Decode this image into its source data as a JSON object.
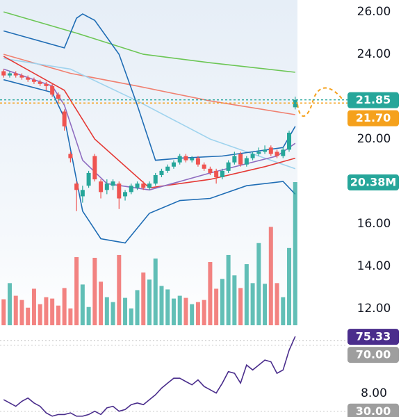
{
  "chart_data": {
    "type": "candlestick",
    "xlim": [
      -0.6,
      48.6
    ],
    "ylim": [
      6.89,
      26.56
    ],
    "yticks": [
      {
        "value": 26,
        "label": "26.00"
      },
      {
        "value": 24,
        "label": "24.00"
      },
      {
        "value": 20,
        "label": "20.00"
      },
      {
        "value": 16,
        "label": "16.00"
      },
      {
        "value": 14,
        "label": "14.00"
      },
      {
        "value": 12,
        "label": "12.00"
      },
      {
        "value": 8,
        "label": "8.00"
      }
    ],
    "up_color": "#26a69a",
    "down_color": "#ef5350",
    "open": [
      23.2,
      23.0,
      23.1,
      23.0,
      22.9,
      22.8,
      22.7,
      22.6,
      22.5,
      22.1,
      21.3,
      19.3,
      17.9,
      17.3,
      17.8,
      19.2,
      18.0,
      17.6,
      17.8,
      17.9,
      17.3,
      17.5,
      17.7,
      17.9,
      17.7,
      17.9,
      18.3,
      18.5,
      18.7,
      18.9,
      19.2,
      19.0,
      19.1,
      18.8,
      18.6,
      18.5,
      18.2,
      18.5,
      18.9,
      19.3,
      18.8,
      19.1,
      19.3,
      19.4,
      19.6,
      19.4,
      19.2,
      19.5,
      21.5
    ],
    "high": [
      23.3,
      23.2,
      23.2,
      23.1,
      23.0,
      22.9,
      22.8,
      22.7,
      22.6,
      22.2,
      21.4,
      19.4,
      18.0,
      17.8,
      18.5,
      19.3,
      18.1,
      18.1,
      18.1,
      18.0,
      17.6,
      17.9,
      18.0,
      18.0,
      18.0,
      18.4,
      18.6,
      18.8,
      19.0,
      19.3,
      19.3,
      19.2,
      19.2,
      18.9,
      18.7,
      18.6,
      18.6,
      19.0,
      19.4,
      19.4,
      19.2,
      19.4,
      19.6,
      19.7,
      19.7,
      19.5,
      19.6,
      20.4,
      22.0
    ],
    "low": [
      22.9,
      22.9,
      22.9,
      22.8,
      22.7,
      22.6,
      22.5,
      22.3,
      22.0,
      21.7,
      20.4,
      18.9,
      16.6,
      17.0,
      17.7,
      18.0,
      17.2,
      17.4,
      17.6,
      16.7,
      17.1,
      17.4,
      17.6,
      17.6,
      17.6,
      17.8,
      18.2,
      18.4,
      18.6,
      18.8,
      18.9,
      18.9,
      18.7,
      18.5,
      18.3,
      17.9,
      18.1,
      18.4,
      18.8,
      18.7,
      18.7,
      19.0,
      19.2,
      19.3,
      19.2,
      19.1,
      19.1,
      19.4,
      21.4
    ],
    "close": [
      23.0,
      23.1,
      23.0,
      22.9,
      22.8,
      22.7,
      22.6,
      22.5,
      22.1,
      21.9,
      20.6,
      19.1,
      17.6,
      17.6,
      18.4,
      18.1,
      17.5,
      17.9,
      18.0,
      17.2,
      17.5,
      17.8,
      17.9,
      17.7,
      17.9,
      18.3,
      18.5,
      18.7,
      18.9,
      19.2,
      19.0,
      19.1,
      18.8,
      18.6,
      18.4,
      18.2,
      18.5,
      18.9,
      19.2,
      18.8,
      19.1,
      19.3,
      19.4,
      19.5,
      19.3,
      19.2,
      19.5,
      20.3,
      21.85
    ],
    "lines": [
      {
        "color": "#6cc655",
        "x": [
          0,
          12,
          23,
          34,
          48
        ],
        "values": [
          26.0,
          25.0,
          24.0,
          23.6,
          23.15
        ]
      },
      {
        "color": "#f08070",
        "x": [
          0,
          11,
          22,
          34,
          48
        ],
        "values": [
          24.0,
          23.1,
          22.5,
          21.8,
          21.15
        ]
      },
      {
        "color": "#9fd3ee",
        "x": [
          0,
          11,
          22,
          34,
          40,
          48
        ],
        "values": [
          23.8,
          23.3,
          21.8,
          20.0,
          19.4,
          18.6
        ]
      },
      {
        "color": "#e53935",
        "x": [
          0,
          10,
          15,
          24,
          34,
          43,
          48
        ],
        "values": [
          23.9,
          22.3,
          20.0,
          17.7,
          18.1,
          18.7,
          19.1
        ]
      },
      {
        "color": "#8e6cc0",
        "x": [
          0,
          8,
          10,
          13,
          17,
          24,
          34,
          45,
          48
        ],
        "values": [
          23.3,
          22.5,
          21.6,
          19.0,
          17.9,
          17.6,
          18.4,
          19.2,
          19.8
        ]
      },
      {
        "color": "#1f6db5",
        "x": [
          0,
          10,
          12,
          13,
          15,
          19,
          22,
          25,
          29,
          36,
          46,
          48
        ],
        "values": [
          25.1,
          24.3,
          25.7,
          25.9,
          25.6,
          24.0,
          21.6,
          19.0,
          19.1,
          19.2,
          19.6,
          20.6
        ]
      },
      {
        "color": "#1f6db5",
        "x": [
          0,
          8,
          10,
          13,
          16,
          20,
          24,
          29,
          34,
          40,
          46,
          48
        ],
        "values": [
          22.8,
          22.2,
          21.0,
          16.6,
          15.3,
          15.1,
          16.5,
          17.1,
          17.2,
          17.8,
          18.0,
          17.4
        ]
      }
    ],
    "price_lines": [
      {
        "value": 21.85,
        "label": "21.85",
        "color": "#26a69a"
      },
      {
        "value": 21.7,
        "label": "21.70",
        "color": "#f5a11c"
      }
    ],
    "volume": {
      "ylim": [
        0,
        46.3
      ],
      "values": [
        3.7,
        6.0,
        4.2,
        3.6,
        2.5,
        5.2,
        3.0,
        4.0,
        3.8,
        2.8,
        5.3,
        2.4,
        9.7,
        5.8,
        2.6,
        9.6,
        6.2,
        4.0,
        3.3,
        10.0,
        3.9,
        2.4,
        5.0,
        7.5,
        6.5,
        9.5,
        5.6,
        5.1,
        3.8,
        4.2,
        3.9,
        3.0,
        3.3,
        3.6,
        9.0,
        5.2,
        6.6,
        10.0,
        7.1,
        5.3,
        8.7,
        6.0,
        11.7,
        5.9,
        14.0,
        6.0,
        4.0,
        11.0,
        20.38
      ],
      "value_labels": [
        null,
        null,
        null,
        null,
        null,
        null,
        null,
        null,
        null,
        null,
        null,
        null,
        null,
        null,
        null,
        null,
        null,
        null,
        null,
        null,
        null,
        null,
        null,
        null,
        null,
        null,
        null,
        null,
        null,
        null,
        null,
        null,
        null,
        null,
        null,
        null,
        null,
        null,
        null,
        null,
        null,
        null,
        null,
        null,
        null,
        null,
        null,
        null,
        "20.38M"
      ]
    },
    "rsi": {
      "color": "#4a2d8c",
      "ylim": [
        26.5,
        80
      ],
      "yticks": [
        {
          "value": 70,
          "label": "70.00"
        },
        {
          "value": 30,
          "label": "30.00"
        }
      ],
      "values": [
        37,
        35,
        33,
        36,
        38,
        35,
        33,
        29,
        27,
        28,
        28,
        29,
        27,
        27,
        28,
        30,
        28,
        32,
        33,
        30,
        31,
        34,
        35,
        34,
        37,
        40,
        44,
        47,
        50,
        50,
        48,
        46,
        49,
        45,
        43,
        41,
        47,
        54,
        53,
        47,
        58,
        55,
        58,
        61,
        60,
        53,
        55,
        67,
        75.33
      ]
    }
  }
}
